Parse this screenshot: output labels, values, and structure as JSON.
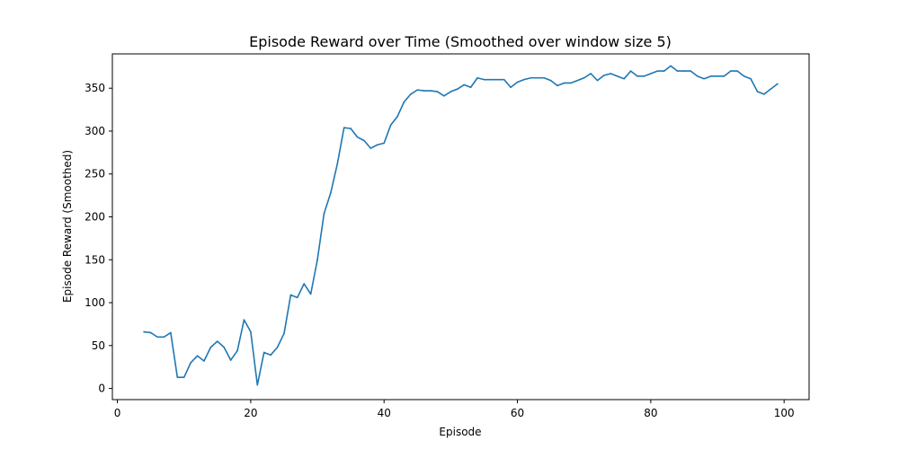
{
  "chart_data": {
    "type": "line",
    "title": "Episode Reward over Time (Smoothed over window size 5)",
    "xlabel": "Episode",
    "ylabel": "Episode Reward (Smoothed)",
    "xlim": [
      -0.75,
      103.75
    ],
    "ylim": [
      -13,
      390
    ],
    "xticks": [
      0,
      20,
      40,
      60,
      80,
      100
    ],
    "yticks": [
      0,
      50,
      100,
      150,
      200,
      250,
      300,
      350
    ],
    "grid": false,
    "colors": {
      "line": "#1f77b4",
      "axes": "#000000"
    },
    "series": [
      {
        "x": [
          4,
          5,
          6,
          7,
          8,
          9,
          10,
          11,
          12,
          13,
          14,
          15,
          16,
          17,
          18,
          19,
          20,
          21,
          22,
          23,
          24,
          25,
          26,
          27,
          28,
          29,
          30,
          31,
          32,
          33,
          34,
          35,
          36,
          37,
          38,
          39,
          40,
          41,
          42,
          43,
          44,
          45,
          46,
          47,
          48,
          49,
          50,
          51,
          52,
          53,
          54,
          55,
          56,
          57,
          58,
          59,
          60,
          61,
          62,
          63,
          64,
          65,
          66,
          67,
          68,
          69,
          70,
          71,
          72,
          73,
          74,
          75,
          76,
          77,
          78,
          79,
          80,
          81,
          82,
          83,
          84,
          85,
          86,
          87,
          88,
          89,
          90,
          91,
          92,
          93,
          94,
          95,
          96,
          97,
          98,
          99
        ],
        "values": [
          66,
          65,
          60,
          60,
          65,
          13,
          13,
          30,
          38,
          32,
          48,
          55,
          48,
          33,
          44,
          80,
          66,
          4,
          42,
          39,
          48,
          64,
          109,
          106,
          122,
          110,
          150,
          204,
          228,
          262,
          304,
          303,
          293,
          289,
          280,
          284,
          286,
          307,
          317,
          334,
          343,
          348,
          347,
          347,
          346,
          341,
          346,
          349,
          354,
          351,
          362,
          360,
          360,
          360,
          360,
          351,
          357,
          360,
          362,
          362,
          362,
          359,
          353,
          356,
          356,
          359,
          362,
          367,
          359,
          365,
          367,
          364,
          361,
          370,
          364,
          364,
          367,
          370,
          370,
          376,
          370,
          370,
          370,
          364,
          361,
          364,
          364,
          364,
          370,
          370,
          364,
          361,
          346,
          343,
          349,
          355
        ]
      }
    ]
  }
}
